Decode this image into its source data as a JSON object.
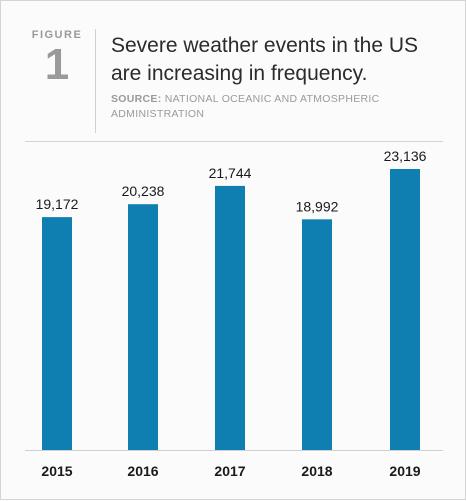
{
  "figure": {
    "label": "FIGURE",
    "number": "1",
    "title": "Severe weather events in the US are increasing in frequency.",
    "source_key": "SOURCE:",
    "source_text": "NATIONAL OCEANIC AND ATMOSPHERIC ADMINISTRATION"
  },
  "colors": {
    "bar": "#0e7fb0",
    "text": "#1a1a1a",
    "muted": "#9a9a9a"
  },
  "chart_data": {
    "type": "bar",
    "categories": [
      "2015",
      "2016",
      "2017",
      "2018",
      "2019"
    ],
    "values": [
      19172,
      20238,
      21744,
      18992,
      23136
    ],
    "value_labels": [
      "19,172",
      "20,238",
      "21,744",
      "18,992",
      "23,136"
    ],
    "title": "Severe weather events in the US are increasing in frequency.",
    "xlabel": "",
    "ylabel": "",
    "ylim": [
      0,
      23136
    ],
    "grid": false,
    "legend": "none"
  }
}
